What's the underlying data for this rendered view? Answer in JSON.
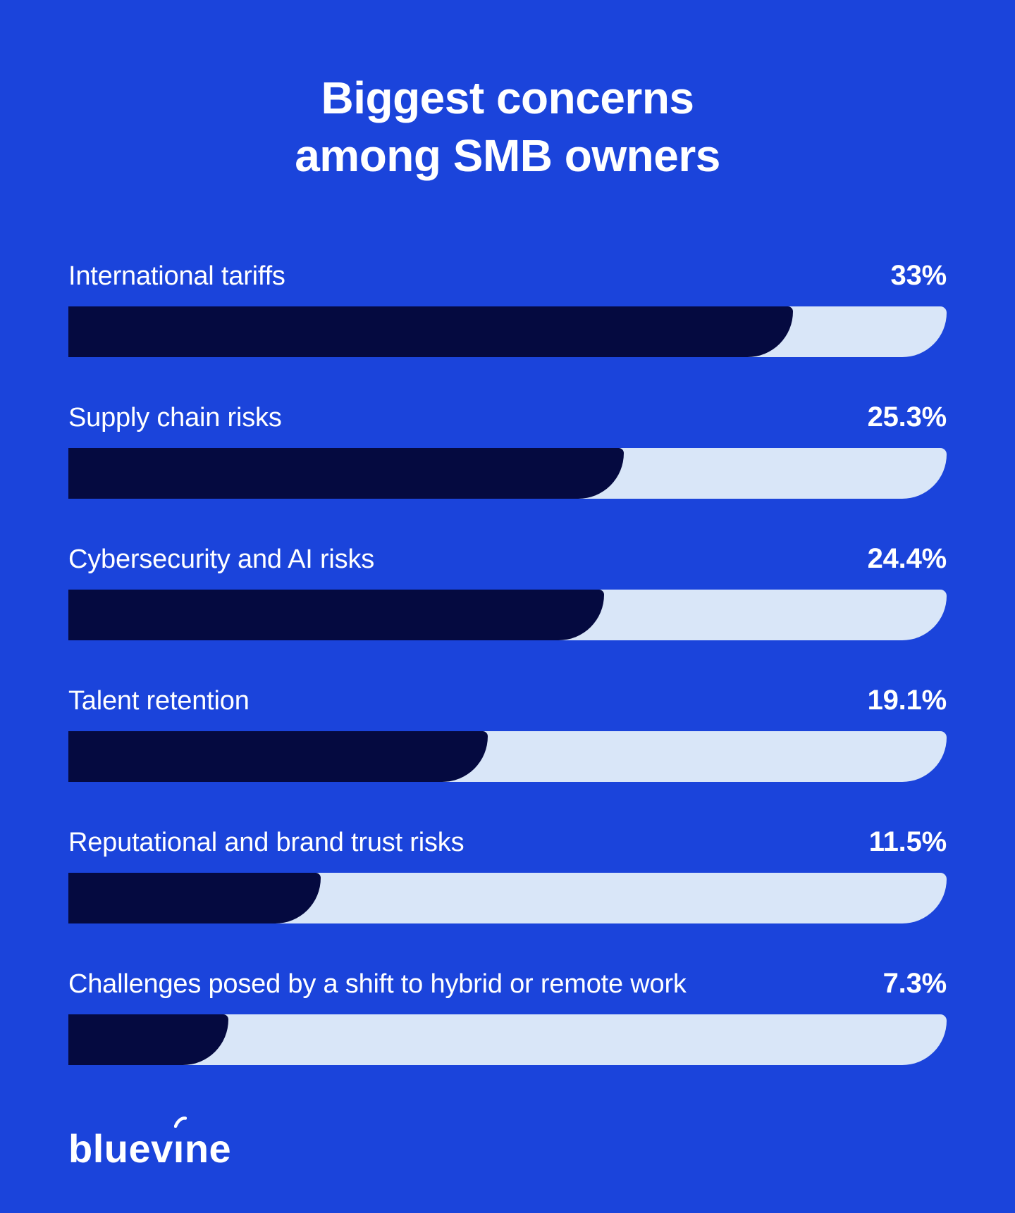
{
  "page": {
    "background_color": "#1B44DB",
    "text_color": "#FFFFFF"
  },
  "header": {
    "title_line1": "Biggest concerns",
    "title_line2": "among SMB owners"
  },
  "chart_data": {
    "type": "bar",
    "orientation": "horizontal",
    "title": "Biggest concerns among SMB owners",
    "categories": [
      "International tariffs",
      "Supply chain risks",
      "Cybersecurity and AI risks",
      "Talent retention",
      "Reputational and brand trust risks",
      "Challenges posed by a shift to hybrid or remote work"
    ],
    "values": [
      33,
      25.3,
      24.4,
      19.1,
      11.5,
      7.3
    ],
    "value_labels": [
      "33%",
      "25.3%",
      "24.4%",
      "19.1%",
      "11.5%",
      "7.3%"
    ],
    "xlim": [
      0,
      40
    ],
    "grid": false,
    "legend": false,
    "colors": {
      "bar_fill": "#050A40",
      "bar_track": "#D9E6F8",
      "background": "#1B44DB",
      "text": "#FFFFFF"
    }
  },
  "footer": {
    "brand": "bluevine",
    "logo_parts": {
      "before": "bluev",
      "i": "ı",
      "after": "ne"
    }
  }
}
